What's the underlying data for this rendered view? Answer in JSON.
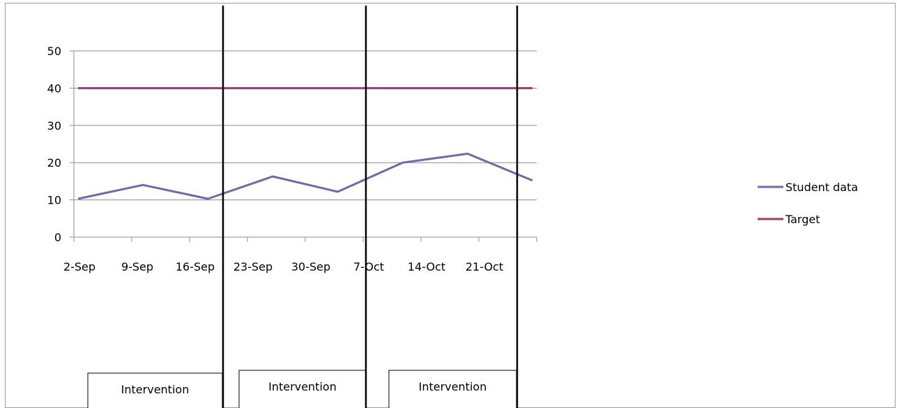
{
  "chart_data": {
    "type": "line",
    "categories": [
      "2-Sep",
      "9-Sep",
      "16-Sep",
      "23-Sep",
      "30-Sep",
      "7-Oct",
      "14-Oct",
      "21-Oct"
    ],
    "ylim": [
      0,
      50
    ],
    "yticks": [
      0,
      10,
      20,
      30,
      40,
      50
    ],
    "grid": true,
    "legend": "right",
    "series": [
      {
        "name": "Student data",
        "color": "#6b6ba6",
        "values": [
          10.3,
          14,
          10.3,
          16.3,
          12.2,
          20,
          22.4,
          15.2
        ]
      },
      {
        "name": "Target",
        "color": "#9b3a6e",
        "values": [
          40,
          40,
          40,
          40,
          40,
          40,
          40,
          40
        ]
      }
    ],
    "phase_lines_after": [
      "16-Sep",
      "30-Sep",
      "14-Oct"
    ],
    "annotations": [
      "Intervention",
      "Intervention",
      "Intervention"
    ]
  }
}
